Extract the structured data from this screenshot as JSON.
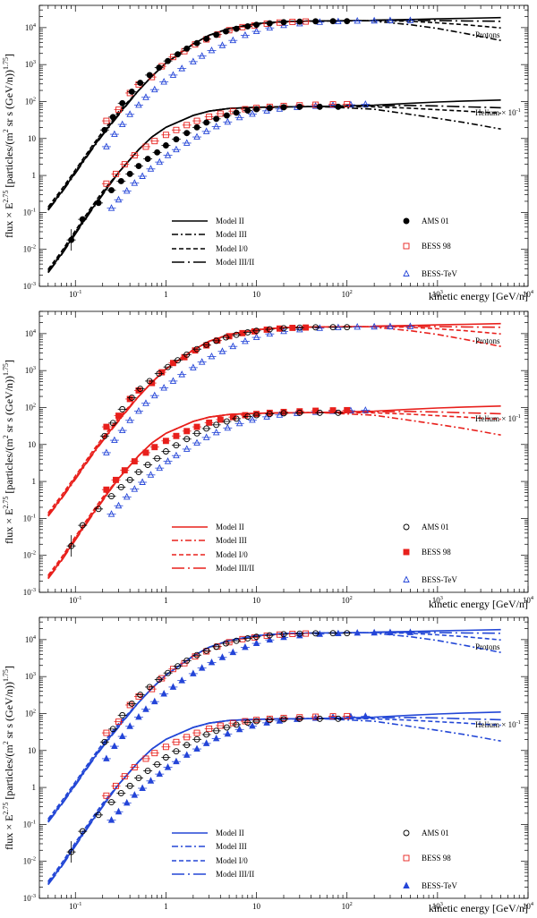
{
  "figure": {
    "ylabel": "flux × E2.75 [particles/(m2 sr s (GeV/n))1.75]",
    "ylabel_parts": {
      "pre": "flux × E",
      "exp1": "2.75",
      "mid1": " [particles/(m",
      "exp2": "2",
      "mid2": " sr s (GeV/n))",
      "exp3": "1.75",
      "end": "]"
    },
    "xlabel": "kinetic energy [GeV/n]",
    "x_tick_labels": [
      {
        "base": "10",
        "exp": "-1",
        "value": 0.1
      },
      {
        "base": "1",
        "exp": "",
        "value": 1
      },
      {
        "base": "10",
        "exp": "",
        "value": 10
      },
      {
        "base": "10",
        "exp": "2",
        "value": 100
      },
      {
        "base": "10",
        "exp": "3",
        "value": 1000
      },
      {
        "base": "10",
        "exp": "4",
        "value": 10000
      }
    ],
    "y_tick_labels": [
      {
        "base": "10",
        "exp": "-3",
        "value": 0.001
      },
      {
        "base": "10",
        "exp": "-2",
        "value": 0.01
      },
      {
        "base": "10",
        "exp": "-1",
        "value": 0.1
      },
      {
        "base": "1",
        "exp": "",
        "value": 1
      },
      {
        "base": "10",
        "exp": "",
        "value": 10
      },
      {
        "base": "10",
        "exp": "2",
        "value": 100
      },
      {
        "base": "10",
        "exp": "3",
        "value": 1000
      },
      {
        "base": "10",
        "exp": "4",
        "value": 10000
      }
    ],
    "series_labels": {
      "protons": "Protons",
      "helium_text": "Helium × 10",
      "helium_exp": "-1"
    }
  },
  "chart_data": [
    {
      "type": "line",
      "title": "",
      "xscale": "log",
      "yscale": "log",
      "xlim": [
        0.04,
        10000
      ],
      "ylim": [
        0.001,
        40000
      ],
      "color": "#000000",
      "legend_models": [
        "Model II",
        "Model III",
        "Model I/0",
        "Model III/II"
      ],
      "legend_data": [
        {
          "name": "AMS 01",
          "marker": "filled-circle",
          "color": "#000000"
        },
        {
          "name": "BESS 98",
          "marker": "open-square",
          "color": "#e8201c"
        },
        {
          "name": "BESS-TeV",
          "marker": "open-triangle",
          "color": "#2445d8"
        }
      ]
    },
    {
      "type": "line",
      "title": "",
      "xscale": "log",
      "yscale": "log",
      "xlim": [
        0.04,
        10000
      ],
      "ylim": [
        0.001,
        40000
      ],
      "color": "#e8201c",
      "legend_models": [
        "Model II",
        "Model III",
        "Model I/0",
        "Model III/II"
      ],
      "legend_data": [
        {
          "name": "AMS 01",
          "marker": "open-circle",
          "color": "#000000"
        },
        {
          "name": "BESS 98",
          "marker": "filled-square",
          "color": "#e8201c"
        },
        {
          "name": "BESS-TeV",
          "marker": "open-triangle",
          "color": "#2445d8"
        }
      ]
    },
    {
      "type": "line",
      "title": "",
      "xscale": "log",
      "yscale": "log",
      "xlim": [
        0.04,
        10000
      ],
      "ylim": [
        0.001,
        40000
      ],
      "color": "#2347d6",
      "legend_models": [
        "Model II",
        "Model III",
        "Model I/0",
        "Model III/II"
      ],
      "legend_data": [
        {
          "name": "AMS 01",
          "marker": "open-circle",
          "color": "#000000"
        },
        {
          "name": "BESS 98",
          "marker": "open-square",
          "color": "#e8201c"
        },
        {
          "name": "BESS-TeV",
          "marker": "filled-triangle",
          "color": "#2445d8"
        }
      ]
    }
  ],
  "shared_data": {
    "model_x": [
      0.05,
      0.07,
      0.1,
      0.15,
      0.2,
      0.3,
      0.5,
      0.7,
      1,
      2,
      3,
      5,
      10,
      20,
      50,
      100,
      200,
      500,
      1000,
      2000,
      5000
    ],
    "proton_model": [
      0.12,
      0.35,
      1.2,
      5,
      13,
      45,
      200,
      480,
      1100,
      3600,
      6200,
      9500,
      12800,
      14500,
      15200,
      15300,
      15400
    ],
    "proton_highE": {
      "x": [
        200,
        500,
        1000,
        2000,
        5000
      ],
      "Model II": [
        16000,
        16600,
        17200,
        17800,
        18600
      ],
      "Model III": [
        14800,
        12000,
        9500,
        7000,
        4500
      ],
      "Model I/0": [
        15600,
        14800,
        13500,
        12000,
        9800
      ],
      "Model III/II": [
        15800,
        15800,
        15500,
        15200,
        14800
      ]
    },
    "helium_model": [
      0.0025,
      0.0075,
      0.028,
      0.12,
      0.32,
      1.2,
      5,
      11,
      20,
      42,
      55,
      65,
      70,
      72,
      73
    ],
    "helium_highE": {
      "x": [
        200,
        500,
        1000,
        2000,
        5000
      ],
      "Model II": [
        80,
        90,
        97,
        103,
        110
      ],
      "Model III": [
        62,
        45,
        35,
        27,
        18
      ],
      "Model I/0": [
        72,
        66,
        60,
        55,
        48
      ],
      "Model III/II": [
        77,
        78,
        76,
        72,
        68
      ]
    },
    "ams_proton": {
      "x": [
        0.21,
        0.26,
        0.33,
        0.42,
        0.52,
        0.66,
        0.84,
        1.05,
        1.35,
        1.7,
        2.2,
        2.8,
        3.6,
        4.6,
        6,
        8,
        10,
        14,
        20,
        30,
        45,
        70,
        100
      ],
      "y": [
        17,
        38,
        90,
        185,
        320,
        520,
        830,
        1250,
        1900,
        2700,
        3800,
        5000,
        6400,
        7900,
        9300,
        10800,
        11900,
        13100,
        14000,
        14500,
        14800,
        14900,
        14900
      ]
    },
    "bess98_proton": {
      "x": [
        0.22,
        0.3,
        0.4,
        0.5,
        0.7,
        0.9,
        1.2,
        1.6,
        2.1,
        2.8,
        3.7,
        5,
        7,
        9.5,
        13,
        18,
        25,
        35
      ],
      "y": [
        30,
        60,
        170,
        290,
        460,
        900,
        1600,
        2300,
        3500,
        4800,
        6500,
        8500,
        10300,
        11500,
        12800,
        13700,
        14300,
        14600
      ]
    },
    "besstev_proton": {
      "x": [
        0.22,
        0.27,
        0.33,
        0.4,
        0.5,
        0.6,
        0.75,
        0.95,
        1.2,
        1.5,
        2,
        2.5,
        3.2,
        4.2,
        5.5,
        7.5,
        10,
        14,
        20,
        30,
        50,
        80,
        130,
        200,
        300,
        500
      ],
      "y": [
        6,
        13,
        24,
        45,
        80,
        130,
        210,
        340,
        520,
        780,
        1200,
        1700,
        2400,
        3300,
        4500,
        6200,
        7900,
        9800,
        11500,
        12800,
        14000,
        14600,
        15100,
        15300,
        15500,
        15600
      ]
    },
    "ams_helium": {
      "x": [
        0.09,
        0.12,
        0.18,
        0.25,
        0.32,
        0.4,
        0.5,
        0.63,
        0.8,
        1,
        1.3,
        1.7,
        2.2,
        2.8,
        3.6,
        4.7,
        6,
        8,
        10,
        14,
        20,
        30,
        50,
        80
      ],
      "y": [
        0.018,
        0.065,
        0.18,
        0.4,
        0.7,
        1.1,
        1.8,
        2.8,
        4.2,
        6.5,
        9.5,
        14,
        20,
        27,
        34,
        42,
        50,
        57,
        62,
        67,
        70,
        72,
        72,
        72
      ]
    },
    "bess98_helium": {
      "x": [
        0.22,
        0.28,
        0.35,
        0.45,
        0.6,
        0.75,
        1,
        1.3,
        1.7,
        2.2,
        3,
        4,
        5.5,
        7.5,
        10,
        14,
        20,
        30,
        45,
        70,
        100
      ],
      "y": [
        0.6,
        1.1,
        2,
        3.5,
        6,
        8.5,
        12.5,
        17,
        23,
        30,
        39,
        47,
        55,
        62,
        67,
        72,
        76,
        79,
        82,
        84,
        85
      ]
    },
    "besstev_helium": {
      "x": [
        0.25,
        0.3,
        0.37,
        0.45,
        0.55,
        0.68,
        0.85,
        1.05,
        1.3,
        1.7,
        2.2,
        2.8,
        3.6,
        4.8,
        6.5,
        9,
        13,
        18,
        28,
        45,
        70,
        110,
        160
      ],
      "y": [
        0.13,
        0.22,
        0.38,
        0.62,
        0.95,
        1.5,
        2.3,
        3.5,
        5,
        7.5,
        11,
        15.5,
        21,
        28,
        37,
        46,
        56,
        63,
        70,
        75,
        79,
        82,
        84
      ]
    }
  }
}
